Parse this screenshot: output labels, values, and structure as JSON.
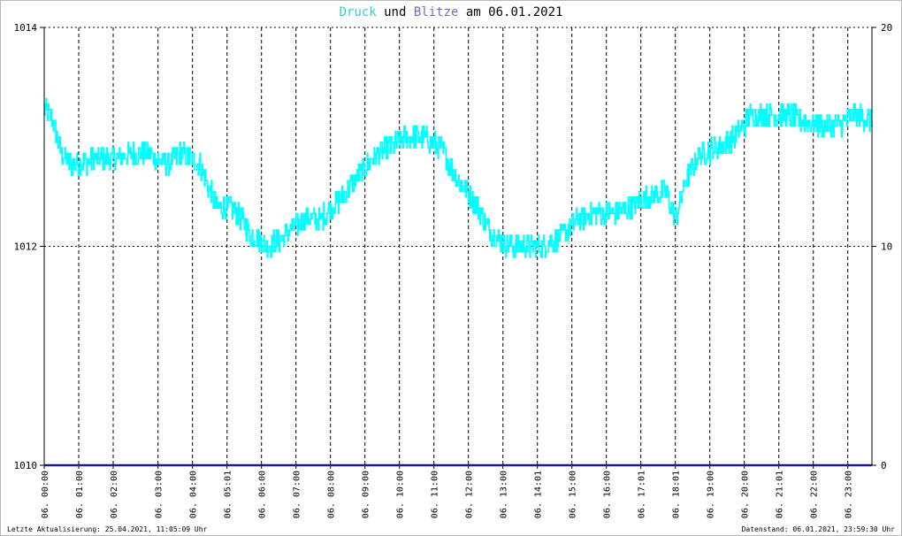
{
  "title": {
    "part1": "Druck",
    "part2": " und ",
    "part3": "Blitze",
    "part4": " am 06.01.2021"
  },
  "footer": {
    "left": "Letzte Aktualisierung: 25.04.2021, 11:05:09 Uhr",
    "right": "Datenstand: 06.01.2021, 23:59:30 Uhr"
  },
  "colors": {
    "druck": "#00ffff",
    "blitze": "#1a1a80",
    "title_druck": "#33cccc",
    "title_blitze": "#7b68c8",
    "axis": "#000000"
  },
  "chart_data": {
    "type": "line",
    "title": "Druck und Blitze am 06.01.2021",
    "y_left": {
      "ylim": [
        1010,
        1014
      ],
      "ticks": [
        1010,
        1012,
        1014
      ]
    },
    "y_right": {
      "ylim": [
        0,
        20
      ],
      "ticks": [
        0,
        10,
        20
      ]
    },
    "x_tick_labels": [
      "06. 00:00",
      "06. 01:00",
      "06. 02:00",
      "06. 03:00",
      "06. 04:00",
      "06. 05:01",
      "06. 06:00",
      "06. 07:00",
      "06. 08:00",
      "06. 09:00",
      "06. 10:00",
      "06. 11:00",
      "06. 12:00",
      "06. 13:00",
      "06. 14:01",
      "06. 15:00",
      "06. 16:00",
      "06. 17:01",
      "06. 18:01",
      "06. 19:00",
      "06. 20:00",
      "06. 21:01",
      "06. 22:00",
      "06. 23:00"
    ],
    "x_tick_hours": [
      0.0,
      1.0,
      2.0,
      3.3,
      4.3,
      5.3,
      6.3,
      7.3,
      8.3,
      9.3,
      10.3,
      11.3,
      12.3,
      13.3,
      14.3,
      15.3,
      16.3,
      17.3,
      18.3,
      19.3,
      20.3,
      21.3,
      22.3,
      23.3
    ],
    "x_range_hours": [
      0,
      24
    ],
    "grid": true,
    "series": [
      {
        "name": "Druck",
        "axis": "left",
        "x_hours": [
          0.0,
          0.25,
          0.5,
          0.75,
          1.0,
          1.5,
          2.0,
          2.5,
          3.0,
          3.5,
          4.0,
          4.5,
          5.0,
          5.5,
          6.0,
          6.5,
          7.0,
          7.5,
          8.0,
          8.5,
          9.0,
          9.5,
          10.0,
          10.5,
          11.0,
          11.5,
          12.0,
          12.5,
          13.0,
          13.5,
          14.0,
          14.5,
          15.0,
          15.5,
          16.0,
          16.5,
          17.0,
          17.5,
          18.0,
          18.3,
          18.6,
          19.0,
          19.5,
          20.0,
          20.5,
          21.0,
          21.5,
          22.0,
          22.5,
          23.0,
          23.5,
          24.0
        ],
        "values": [
          1013.25,
          1013.15,
          1012.85,
          1012.75,
          1012.75,
          1012.8,
          1012.8,
          1012.85,
          1012.85,
          1012.75,
          1012.85,
          1012.75,
          1012.35,
          1012.35,
          1012.1,
          1012.0,
          1012.1,
          1012.25,
          1012.25,
          1012.4,
          1012.6,
          1012.8,
          1012.9,
          1013.0,
          1013.0,
          1012.9,
          1012.6,
          1012.4,
          1012.1,
          1012.0,
          1012.0,
          1012.0,
          1012.1,
          1012.25,
          1012.3,
          1012.3,
          1012.35,
          1012.45,
          1012.5,
          1012.25,
          1012.6,
          1012.85,
          1012.9,
          1013.0,
          1013.2,
          1013.2,
          1013.2,
          1013.15,
          1013.1,
          1013.1,
          1013.2,
          1013.15
        ]
      },
      {
        "name": "Blitze",
        "axis": "right",
        "x_hours": [
          0,
          24
        ],
        "values": [
          0,
          0
        ]
      }
    ]
  }
}
